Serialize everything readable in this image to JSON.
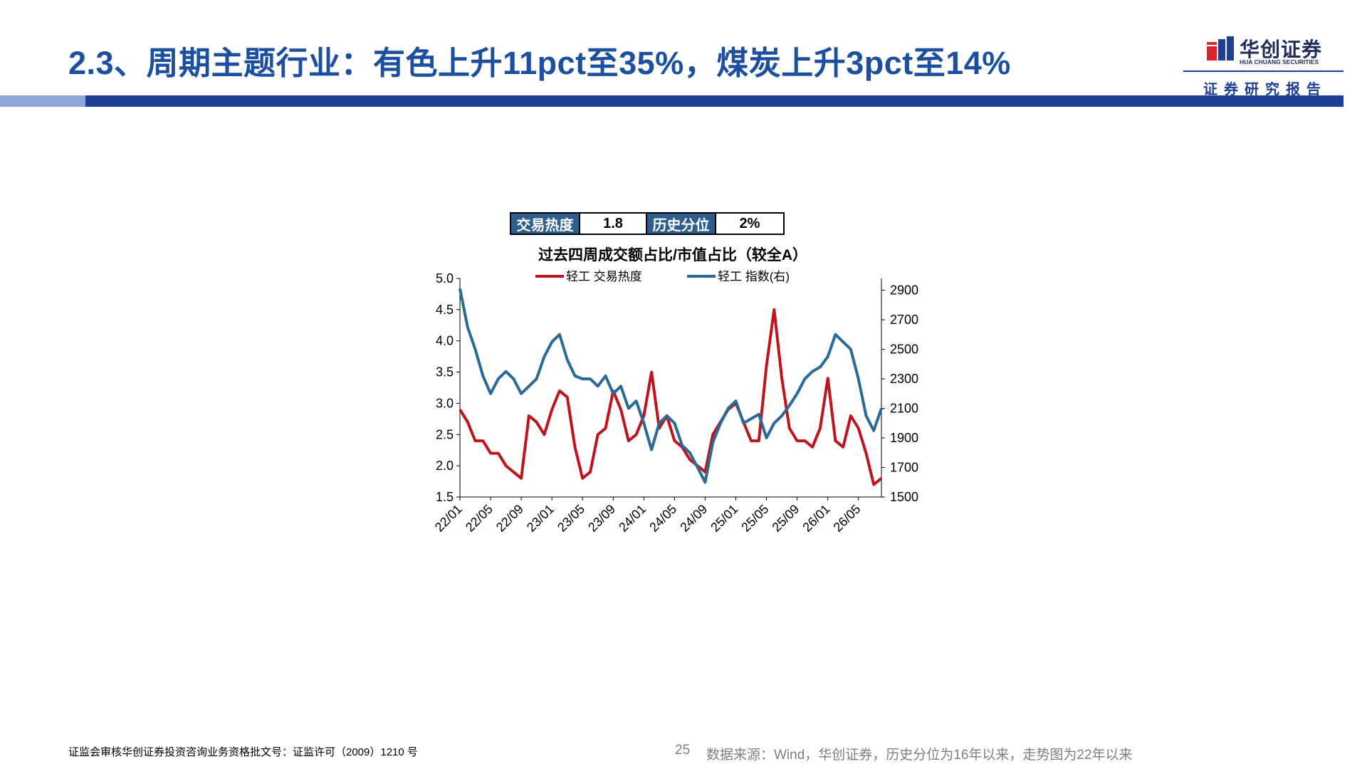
{
  "header": {
    "title": "2.3、周期主题行业：有色上升11pct至35%，煤炭上升3pct至14%",
    "logo_cn": "华创证券",
    "logo_en": "HUA CHUANG SECURITIES",
    "report_label": "证券研究报告"
  },
  "stats": [
    {
      "label": "交易热度",
      "value": "1.8"
    },
    {
      "label": "历史分位",
      "value": "2%"
    }
  ],
  "chart_data": {
    "type": "line",
    "title": "过去四周成交额占比/市值占比（较全A）",
    "x_tick_labels": [
      "22/01",
      "22/05",
      "22/09",
      "23/01",
      "23/05",
      "23/09",
      "24/01",
      "24/05",
      "24/09",
      "25/01",
      "25/05",
      "25/09",
      "26/01",
      "26/05"
    ],
    "x": [
      "22/01",
      "22/02",
      "22/03",
      "22/04",
      "22/05",
      "22/06",
      "22/07",
      "22/08",
      "22/09",
      "22/10",
      "22/11",
      "22/12",
      "23/01",
      "23/02",
      "23/03",
      "23/04",
      "23/05",
      "23/06",
      "23/07",
      "23/08",
      "23/09",
      "23/10",
      "23/11",
      "23/12",
      "24/01",
      "24/02",
      "24/03",
      "24/04",
      "24/05",
      "24/06",
      "24/07",
      "24/08",
      "24/09",
      "24/10",
      "24/11",
      "24/12",
      "25/01",
      "25/02",
      "25/03",
      "25/04",
      "25/05",
      "25/06",
      "25/07",
      "25/08",
      "25/09",
      "25/10",
      "25/11",
      "25/12",
      "26/01",
      "26/02",
      "26/03",
      "26/04",
      "26/05",
      "26/06",
      "26/07",
      "26/08"
    ],
    "y_left_lim": [
      1.5,
      5.0
    ],
    "y_left_ticks": [
      "1.5",
      "2.0",
      "2.5",
      "3.0",
      "3.5",
      "4.0",
      "4.5",
      "5.0"
    ],
    "y_right_lim": [
      1500,
      2980
    ],
    "y_right_ticks": [
      "1500",
      "1700",
      "1900",
      "2100",
      "2300",
      "2500",
      "2700",
      "2900"
    ],
    "series": [
      {
        "name": "轻工 交易热度",
        "axis": "left",
        "color": "#c0141c",
        "values": [
          2.9,
          2.7,
          2.4,
          2.4,
          2.2,
          2.2,
          2.0,
          1.9,
          1.8,
          2.8,
          2.7,
          2.5,
          2.9,
          3.2,
          3.1,
          2.3,
          1.8,
          1.9,
          2.5,
          2.6,
          3.2,
          2.9,
          2.4,
          2.5,
          2.8,
          3.5,
          2.6,
          2.8,
          2.4,
          2.3,
          2.1,
          2.0,
          1.9,
          2.5,
          2.7,
          2.9,
          3.0,
          2.7,
          2.4,
          2.4,
          3.6,
          4.5,
          3.4,
          2.6,
          2.4,
          2.4,
          2.3,
          2.6,
          3.4,
          2.4,
          2.3,
          2.8,
          2.6,
          2.2,
          1.7,
          1.8
        ]
      },
      {
        "name": "轻工 指数(右)",
        "axis": "right",
        "color": "#2a6a96",
        "values": [
          2910,
          2650,
          2500,
          2320,
          2200,
          2300,
          2350,
          2300,
          2200,
          2250,
          2300,
          2450,
          2550,
          2600,
          2430,
          2320,
          2300,
          2300,
          2250,
          2320,
          2200,
          2250,
          2100,
          2150,
          2000,
          1820,
          2000,
          2050,
          2000,
          1850,
          1800,
          1700,
          1600,
          1870,
          2000,
          2100,
          2150,
          2000,
          2030,
          2060,
          1900,
          2000,
          2050,
          2120,
          2200,
          2300,
          2350,
          2380,
          2450,
          2600,
          2550,
          2500,
          2300,
          2050,
          1950,
          2100
        ]
      }
    ]
  },
  "footer": {
    "license": "证监会审核华创证券投资咨询业务资格批文号：证监许可（2009）1210 号",
    "page_number": "25",
    "source": "数据来源：Wind，华创证券，历史分位为16年以来，走势图为22年以来"
  }
}
